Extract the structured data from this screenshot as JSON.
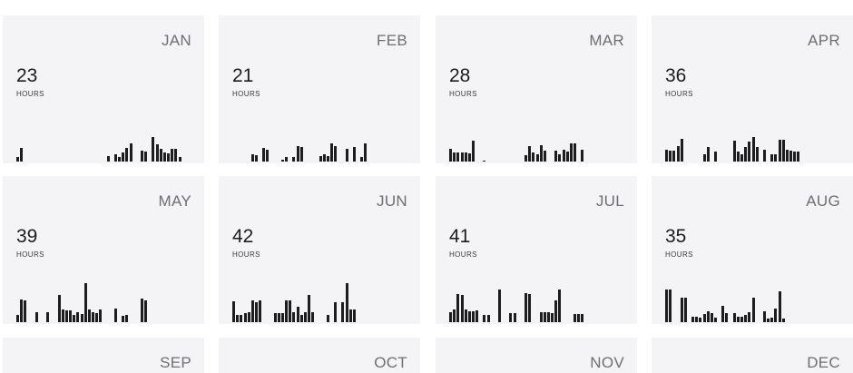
{
  "months": [
    {
      "name": "JAN",
      "hours": "23",
      "unit": "HOURS",
      "days": [
        0.19,
        0.53,
        0,
        0,
        0,
        0,
        0,
        0,
        0,
        0,
        0,
        0,
        0,
        0,
        0,
        0,
        0,
        0,
        0,
        0,
        0,
        0,
        0,
        0,
        0.23,
        0,
        0.28,
        0.19,
        0.37,
        0.53,
        0.72,
        0,
        0,
        0.44,
        0.4,
        0,
        0.95,
        0.67,
        0.5,
        0.37,
        0.33,
        0.51,
        0.49,
        0.19,
        0,
        0,
        0
      ]
    },
    {
      "name": "FEB",
      "hours": "21",
      "unit": "HOURS",
      "days": [
        0,
        0,
        0,
        0,
        0,
        0.3,
        0.26,
        0,
        0.53,
        0.47,
        0,
        0,
        0,
        0.09,
        0.19,
        0,
        0.19,
        0.6,
        0.56,
        0,
        0,
        0,
        0,
        0.23,
        0.28,
        0.23,
        0.72,
        0.6,
        0,
        0,
        0.51,
        0,
        0.56,
        0,
        0.19,
        0.72,
        0,
        0,
        0,
        0,
        0,
        0,
        0,
        0,
        0,
        0,
        0
      ]
    },
    {
      "name": "MAR",
      "hours": "28",
      "unit": "HOURS",
      "days": [
        0.51,
        0.35,
        0.35,
        0.37,
        0.37,
        0.33,
        0.81,
        0,
        0,
        0.05,
        0,
        0,
        0,
        0,
        0,
        0,
        0,
        0,
        0,
        0,
        0.26,
        0.6,
        0.35,
        0.28,
        0.65,
        0.44,
        0,
        0,
        0.44,
        0.3,
        0.47,
        0.4,
        0.72,
        0.72,
        0,
        0.47,
        0,
        0,
        0,
        0,
        0,
        0,
        0,
        0,
        0,
        0,
        0
      ]
    },
    {
      "name": "APR",
      "hours": "36",
      "unit": "HOURS",
      "days": [
        0.47,
        0.42,
        0.44,
        0.6,
        0.88,
        0,
        0,
        0,
        0,
        0,
        0.28,
        0.56,
        0,
        0.4,
        0,
        0,
        0,
        0,
        0.81,
        0.4,
        0.3,
        0.58,
        0.77,
        0.98,
        0.58,
        0,
        0.47,
        0,
        0.3,
        0.28,
        0.86,
        0.86,
        0.47,
        0.44,
        0.4,
        0.4,
        0,
        0,
        0,
        0,
        0,
        0,
        0,
        0,
        0,
        0,
        0
      ]
    },
    {
      "name": "MAY",
      "hours": "39",
      "unit": "HOURS",
      "days": [
        0.28,
        0.88,
        0.86,
        0,
        0,
        0.4,
        0,
        0,
        0.4,
        0,
        0,
        1.07,
        0.51,
        0.47,
        0.47,
        0.3,
        0.4,
        0.33,
        1.53,
        0.51,
        0.4,
        0.37,
        0.51,
        0,
        0,
        0,
        0.53,
        0,
        0.26,
        0.28,
        0,
        0,
        0,
        0.93,
        0.86,
        0,
        0,
        0,
        0,
        0,
        0,
        0,
        0,
        0,
        0,
        0,
        0
      ]
    },
    {
      "name": "JUN",
      "hours": "42",
      "unit": "HOURS",
      "days": [
        0.81,
        0.3,
        0.3,
        0.35,
        0.4,
        0.86,
        0.77,
        0.86,
        0,
        0,
        0,
        0.37,
        0.37,
        0.37,
        0.86,
        0.86,
        0.4,
        0.6,
        0.3,
        0.4,
        1.07,
        0.4,
        0,
        0,
        0,
        0.28,
        0,
        0.77,
        0,
        0.77,
        1.53,
        0.51,
        0.51,
        0,
        0,
        0,
        0,
        0,
        0,
        0,
        0,
        0,
        0,
        0,
        0,
        0,
        0
      ]
    },
    {
      "name": "JUL",
      "hours": "41",
      "unit": "HOURS",
      "days": [
        0.4,
        0.51,
        1.12,
        1.07,
        0.49,
        0.44,
        0.44,
        0.47,
        0,
        0.28,
        0.28,
        0,
        0,
        1.3,
        0,
        0,
        0.37,
        0.37,
        0,
        0,
        1.14,
        1.12,
        0,
        0,
        0.4,
        0.4,
        0.4,
        0.37,
        0.86,
        1.3,
        0,
        0,
        0,
        0.33,
        0.33,
        0.33,
        0,
        0,
        0,
        0,
        0,
        0,
        0,
        0,
        0,
        0,
        0
      ]
    },
    {
      "name": "AUG",
      "hours": "35",
      "unit": "HOURS",
      "days": [
        1.28,
        1.28,
        0,
        0,
        0.98,
        0.95,
        0,
        0.23,
        0.23,
        0.19,
        0.33,
        0.44,
        0.35,
        0.19,
        0,
        0.65,
        0.35,
        0,
        0.37,
        0.23,
        0.23,
        0.28,
        0.4,
        0.98,
        0,
        0,
        0.42,
        0.14,
        0.19,
        0.53,
        1.23,
        0.14,
        0,
        0,
        0,
        0,
        0,
        0,
        0,
        0,
        0,
        0,
        0,
        0,
        0,
        0,
        0
      ]
    },
    {
      "name": "SEP",
      "hours": "",
      "unit": "",
      "days": []
    },
    {
      "name": "OCT",
      "hours": "",
      "unit": "",
      "days": []
    },
    {
      "name": "NOV",
      "hours": "",
      "unit": "",
      "days": []
    },
    {
      "name": "DEC",
      "hours": "",
      "unit": "",
      "days": []
    }
  ],
  "colors": {
    "card_bg": "#f4f4f6",
    "bar": "#1d1d1f",
    "month_label": "#6e6e73"
  }
}
